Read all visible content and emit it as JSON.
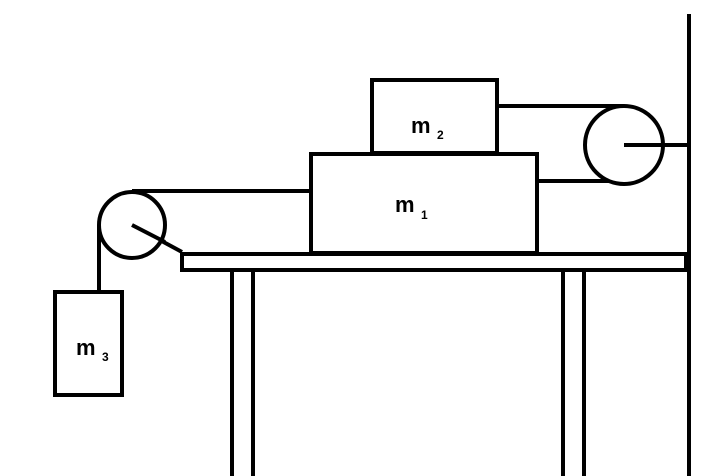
{
  "blocks": [
    {
      "id": "m1",
      "label": "m",
      "subscript": "1"
    },
    {
      "id": "m2",
      "label": "m",
      "subscript": "2"
    },
    {
      "id": "m3",
      "label": "m",
      "subscript": "3"
    }
  ],
  "colors": {
    "stroke": "#000000",
    "background": "#ffffff"
  }
}
